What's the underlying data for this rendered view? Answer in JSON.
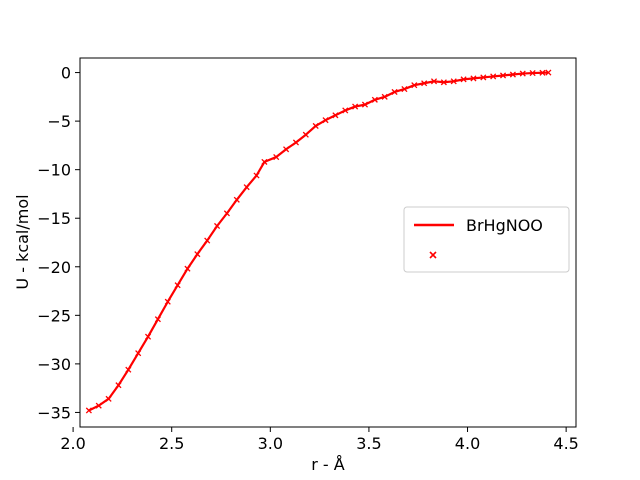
{
  "chart_data": {
    "type": "line",
    "title": "",
    "xlabel": "r - Å",
    "ylabel": "U - kcal/mol",
    "xlim": [
      2.035,
      4.55
    ],
    "ylim": [
      -36.5,
      1.5
    ],
    "xticks": [
      2.0,
      2.5,
      3.0,
      3.5,
      4.0,
      4.5
    ],
    "xtick_labels": [
      "2.0",
      "2.5",
      "3.0",
      "3.5",
      "4.0",
      "4.5"
    ],
    "yticks": [
      0,
      -5,
      -10,
      -15,
      -20,
      -25,
      -30,
      -35
    ],
    "ytick_labels": [
      "0",
      "−5",
      "−10",
      "−15",
      "−20",
      "−25",
      "−30",
      "−35"
    ],
    "grid": false,
    "legend": {
      "position": "center-right",
      "entries": [
        {
          "label": "BrHgNOO",
          "marker": "line"
        },
        {
          "label": "",
          "marker": "x"
        }
      ]
    },
    "colors": {
      "line": "#ff0000",
      "markers": "#ff0000"
    },
    "series": [
      {
        "name": "BrHgNOO",
        "style": "line",
        "x": [
          2.08,
          2.13,
          2.18,
          2.23,
          2.28,
          2.33,
          2.38,
          2.43,
          2.48,
          2.53,
          2.58,
          2.63,
          2.68,
          2.73,
          2.78,
          2.83,
          2.88,
          2.93,
          2.97,
          3.03,
          3.08,
          3.13,
          3.18,
          3.23,
          3.28,
          3.33,
          3.38,
          3.43,
          3.48,
          3.53,
          3.58,
          3.63,
          3.68,
          3.73,
          3.78,
          3.83,
          3.88,
          3.93,
          3.98,
          4.03,
          4.08,
          4.13,
          4.18,
          4.23,
          4.28,
          4.33,
          4.38,
          4.41
        ],
        "y": [
          -34.8,
          -34.3,
          -33.6,
          -32.2,
          -30.6,
          -28.9,
          -27.2,
          -25.4,
          -23.6,
          -21.9,
          -20.2,
          -18.7,
          -17.3,
          -15.8,
          -14.5,
          -13.1,
          -11.8,
          -10.6,
          -9.2,
          -8.7,
          -7.9,
          -7.2,
          -6.4,
          -5.5,
          -4.9,
          -4.4,
          -3.9,
          -3.5,
          -3.3,
          -2.8,
          -2.5,
          -2.0,
          -1.7,
          -1.3,
          -1.1,
          -0.9,
          -1.0,
          -0.9,
          -0.7,
          -0.6,
          -0.5,
          -0.4,
          -0.3,
          -0.2,
          -0.1,
          -0.05,
          -0.02,
          0.0
        ]
      },
      {
        "name": "",
        "style": "markers",
        "x": [
          2.08,
          2.13,
          2.18,
          2.23,
          2.28,
          2.33,
          2.38,
          2.43,
          2.48,
          2.53,
          2.58,
          2.63,
          2.68,
          2.73,
          2.78,
          2.83,
          2.88,
          2.93,
          2.97,
          3.03,
          3.08,
          3.13,
          3.18,
          3.23,
          3.28,
          3.33,
          3.38,
          3.43,
          3.48,
          3.53,
          3.58,
          3.63,
          3.68,
          3.73,
          3.78,
          3.83,
          3.88,
          3.93,
          3.98,
          4.03,
          4.08,
          4.13,
          4.18,
          4.23,
          4.28,
          4.33,
          4.38,
          4.41
        ],
        "y": [
          -34.8,
          -34.3,
          -33.6,
          -32.2,
          -30.6,
          -28.9,
          -27.2,
          -25.4,
          -23.6,
          -21.9,
          -20.2,
          -18.7,
          -17.3,
          -15.8,
          -14.5,
          -13.1,
          -11.8,
          -10.6,
          -9.2,
          -8.7,
          -7.9,
          -7.2,
          -6.4,
          -5.5,
          -4.9,
          -4.4,
          -3.9,
          -3.5,
          -3.3,
          -2.8,
          -2.5,
          -2.0,
          -1.7,
          -1.3,
          -1.1,
          -0.9,
          -1.0,
          -0.9,
          -0.7,
          -0.6,
          -0.5,
          -0.4,
          -0.3,
          -0.2,
          -0.1,
          -0.05,
          -0.02,
          0.0
        ]
      }
    ]
  }
}
